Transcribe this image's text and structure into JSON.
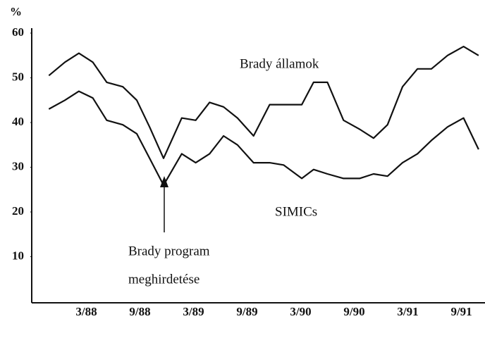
{
  "chart_data": {
    "type": "line",
    "y_label": "%",
    "x": [
      1987.82,
      1987.97,
      1988.1,
      1988.23,
      1988.36,
      1988.51,
      1988.64,
      1988.76,
      1988.89,
      1989.06,
      1989.19,
      1989.32,
      1989.45,
      1989.58,
      1989.73,
      1989.88,
      1990.01,
      1990.18,
      1990.29,
      1990.42,
      1990.57,
      1990.72,
      1990.85,
      1990.98,
      1991.12,
      1991.26,
      1991.39,
      1991.54,
      1991.69,
      1991.83
    ],
    "series": [
      {
        "name": "Brady államok",
        "color": "#111111",
        "values": [
          50.5,
          53.5,
          55.5,
          53.5,
          49,
          48,
          45,
          39,
          32,
          41,
          40.5,
          44.5,
          43.5,
          41,
          37,
          44,
          44,
          44,
          49,
          49,
          40.5,
          38.5,
          36.5,
          39.5,
          48,
          52,
          52,
          55,
          57,
          55
        ]
      },
      {
        "name": "SIMICs",
        "color": "#111111",
        "values": [
          43,
          45,
          47,
          45.5,
          40.5,
          39.5,
          37.5,
          32,
          26,
          33,
          31,
          33,
          37,
          35,
          31,
          31,
          30.5,
          27.5,
          29.5,
          28.5,
          27.5,
          27.5,
          28.5,
          28,
          31,
          33,
          36,
          39,
          41,
          34
        ]
      }
    ],
    "annotation": [
      "Brady program",
      "meghirdetése"
    ],
    "xlim": [
      1987.66,
      1991.89
    ],
    "xticks": [
      {
        "value": 1988.17,
        "label": "3/88"
      },
      {
        "value": 1988.67,
        "label": "9/88"
      },
      {
        "value": 1989.17,
        "label": "3/89"
      },
      {
        "value": 1989.67,
        "label": "9/89"
      },
      {
        "value": 1990.17,
        "label": "3/90"
      },
      {
        "value": 1990.67,
        "label": "9/90"
      },
      {
        "value": 1991.17,
        "label": "3/91"
      },
      {
        "value": 1991.67,
        "label": "9/91"
      }
    ],
    "ylim": [
      0,
      60
    ],
    "yticks": [
      10,
      20,
      30,
      40,
      50,
      60
    ],
    "grid": false
  }
}
